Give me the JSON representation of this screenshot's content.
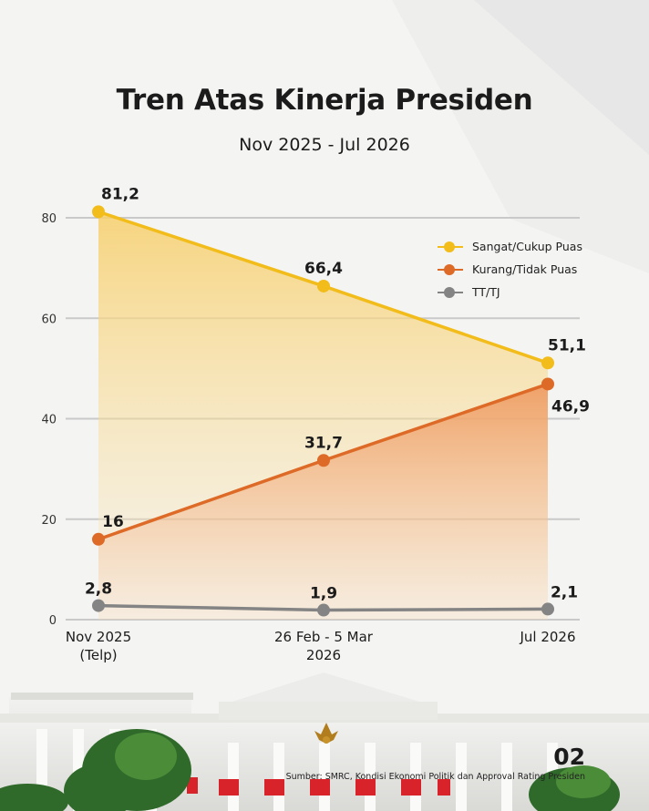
{
  "header": {
    "title": "Tren Atas Kinerja Presiden",
    "subtitle": "Nov 2025 - Jul 2026"
  },
  "footer": {
    "page_number": "02",
    "source": "Sumber: SMRC, Kondisi Ekonomi Politik dan Approval Rating Presiden"
  },
  "chart_data": {
    "type": "line",
    "categories": [
      "Nov 2025\n(Telp)",
      "26 Feb - 5 Mar\n2026",
      "Jul 2026"
    ],
    "ylim": [
      0,
      80
    ],
    "yticks": [
      0,
      20,
      40,
      60,
      80
    ],
    "grid": true,
    "legend_position": "top-right",
    "series": [
      {
        "name": "Sangat/Cukup Puas",
        "color": "#f2bc1b",
        "values": [
          81.2,
          66.4,
          51.1
        ],
        "labels": [
          "81,2",
          "66,4",
          "51,1"
        ],
        "area": true
      },
      {
        "name": "Kurang/Tidak Puas",
        "color": "#de6a28",
        "values": [
          16,
          31.7,
          46.9
        ],
        "labels": [
          "16",
          "31,7",
          "46,9"
        ],
        "area": true
      },
      {
        "name": "TT/TJ",
        "color": "#848484",
        "values": [
          2.8,
          1.9,
          2.1
        ],
        "labels": [
          "2,8",
          "1,9",
          "2,1"
        ],
        "area": false
      }
    ]
  }
}
